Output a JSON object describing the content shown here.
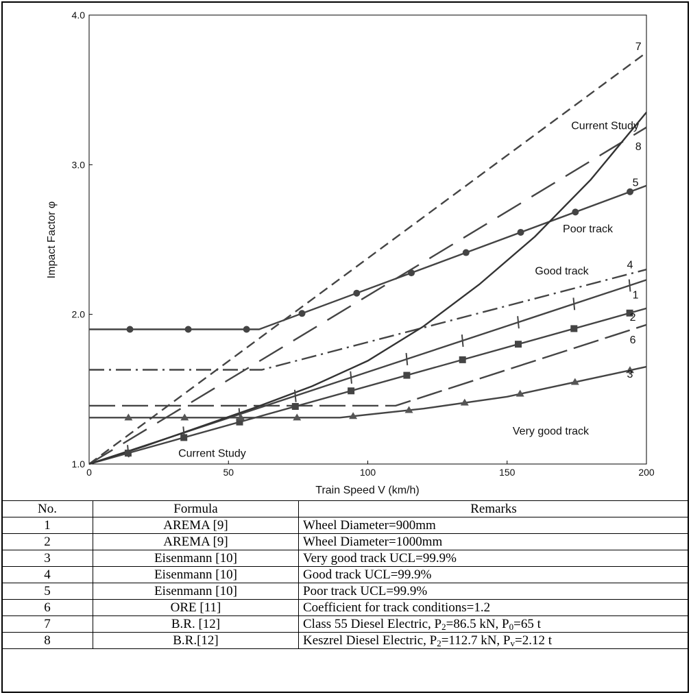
{
  "chart_data": {
    "type": "line",
    "xlabel": "Train Speed V (km/h)",
    "ylabel": "Impact Factor φ",
    "xlim": [
      0,
      200
    ],
    "ylim": [
      1.0,
      4.0
    ],
    "x_ticks": [
      "0",
      "50",
      "100",
      "150",
      "200"
    ],
    "y_ticks": [
      "1.0",
      "2.0",
      "3.0",
      "4.0"
    ],
    "grid": false,
    "series": [
      {
        "name": "1",
        "color": "#444444",
        "dash": "solid",
        "marker": "tick",
        "points": [
          [
            0,
            1.0
          ],
          [
            200,
            2.23
          ]
        ]
      },
      {
        "name": "2",
        "color": "#444444",
        "dash": "solid",
        "marker": "square",
        "points": [
          [
            0,
            1.0
          ],
          [
            200,
            2.04
          ]
        ]
      },
      {
        "name": "3",
        "color": "#444444",
        "dash": "solid",
        "marker": "triangle",
        "points": [
          [
            0,
            1.31
          ],
          [
            90,
            1.31
          ],
          [
            120,
            1.37
          ],
          [
            150,
            1.45
          ],
          [
            200,
            1.65
          ]
        ]
      },
      {
        "name": "4",
        "color": "#444444",
        "dash": "dashdot",
        "marker": "none",
        "points": [
          [
            0,
            1.63
          ],
          [
            62,
            1.63
          ],
          [
            200,
            2.3
          ]
        ]
      },
      {
        "name": "5",
        "color": "#444444",
        "dash": "solid",
        "marker": "circle",
        "points": [
          [
            0,
            1.9
          ],
          [
            61,
            1.9
          ],
          [
            200,
            2.86
          ]
        ]
      },
      {
        "name": "6",
        "color": "#444444",
        "dash": "longdash",
        "marker": "none",
        "points": [
          [
            0,
            1.39
          ],
          [
            110,
            1.39
          ],
          [
            200,
            1.93
          ]
        ]
      },
      {
        "name": "7",
        "color": "#444444",
        "dash": "dash",
        "marker": "none",
        "points": [
          [
            0,
            1.0
          ],
          [
            200,
            3.75
          ]
        ]
      },
      {
        "name": "8",
        "color": "#444444",
        "dash": "dashdotsparse",
        "marker": "none",
        "points": [
          [
            0,
            1.0
          ],
          [
            200,
            3.25
          ]
        ]
      },
      {
        "name": "Current Study",
        "color": "#333333",
        "dash": "solid",
        "marker": "none",
        "points": [
          [
            0,
            1.0
          ],
          [
            20,
            1.12
          ],
          [
            40,
            1.25
          ],
          [
            60,
            1.38
          ],
          [
            80,
            1.52
          ],
          [
            100,
            1.69
          ],
          [
            120,
            1.92
          ],
          [
            140,
            2.2
          ],
          [
            160,
            2.52
          ],
          [
            180,
            2.9
          ],
          [
            200,
            3.35
          ]
        ]
      }
    ],
    "curve_labels": [
      {
        "text": "7",
        "x": 196,
        "y": 3.79
      },
      {
        "text": "Current Study",
        "x": 173,
        "y": 3.26
      },
      {
        "text": "8",
        "x": 196,
        "y": 3.12
      },
      {
        "text": "5",
        "x": 195,
        "y": 2.88
      },
      {
        "text": "Poor track",
        "x": 170,
        "y": 2.57
      },
      {
        "text": "Good track",
        "x": 160,
        "y": 2.29
      },
      {
        "text": "4",
        "x": 193,
        "y": 2.33
      },
      {
        "text": "1",
        "x": 195,
        "y": 2.13
      },
      {
        "text": "2",
        "x": 194,
        "y": 1.98
      },
      {
        "text": "6",
        "x": 194,
        "y": 1.83
      },
      {
        "text": "3",
        "x": 193,
        "y": 1.6
      },
      {
        "text": "Very good track",
        "x": 152,
        "y": 1.22
      },
      {
        "text": "Current Study",
        "x": 32,
        "y": 1.07
      }
    ]
  },
  "table": {
    "headers": [
      "No.",
      "Formula",
      "Remarks"
    ],
    "rows": [
      {
        "no": "1",
        "formula": "AREMA [9]",
        "remarks": "Wheel Diameter=900mm"
      },
      {
        "no": "2",
        "formula": "AREMA [9]",
        "remarks": "Wheel Diameter=1000mm"
      },
      {
        "no": "3",
        "formula": "Eisenmann [10]",
        "remarks": "Very good track UCL=99.9%"
      },
      {
        "no": "4",
        "formula": "Eisenmann [10]",
        "remarks": "Good track UCL=99.9%"
      },
      {
        "no": "5",
        "formula": "Eisenmann [10]",
        "remarks": "Poor track UCL=99.9%"
      },
      {
        "no": "6",
        "formula": "ORE [11]",
        "remarks": "Coefficient for track conditions=1.2"
      },
      {
        "no": "7",
        "formula": "B.R. [12]",
        "remarks_a": "Class 55 Diesel Electric, P",
        "remarks_sub1": "2",
        "remarks_b": "=86.5 kN, P",
        "remarks_sub2": "0",
        "remarks_c": "=65 t"
      },
      {
        "no": "8",
        "formula": "B.R.[12]",
        "remarks_a": "Keszrel Diesel Electric, P",
        "remarks_sub1": "2",
        "remarks_b": "=112.7 kN, P",
        "remarks_sub2": "v",
        "remarks_c": "=2.12 t"
      }
    ]
  }
}
